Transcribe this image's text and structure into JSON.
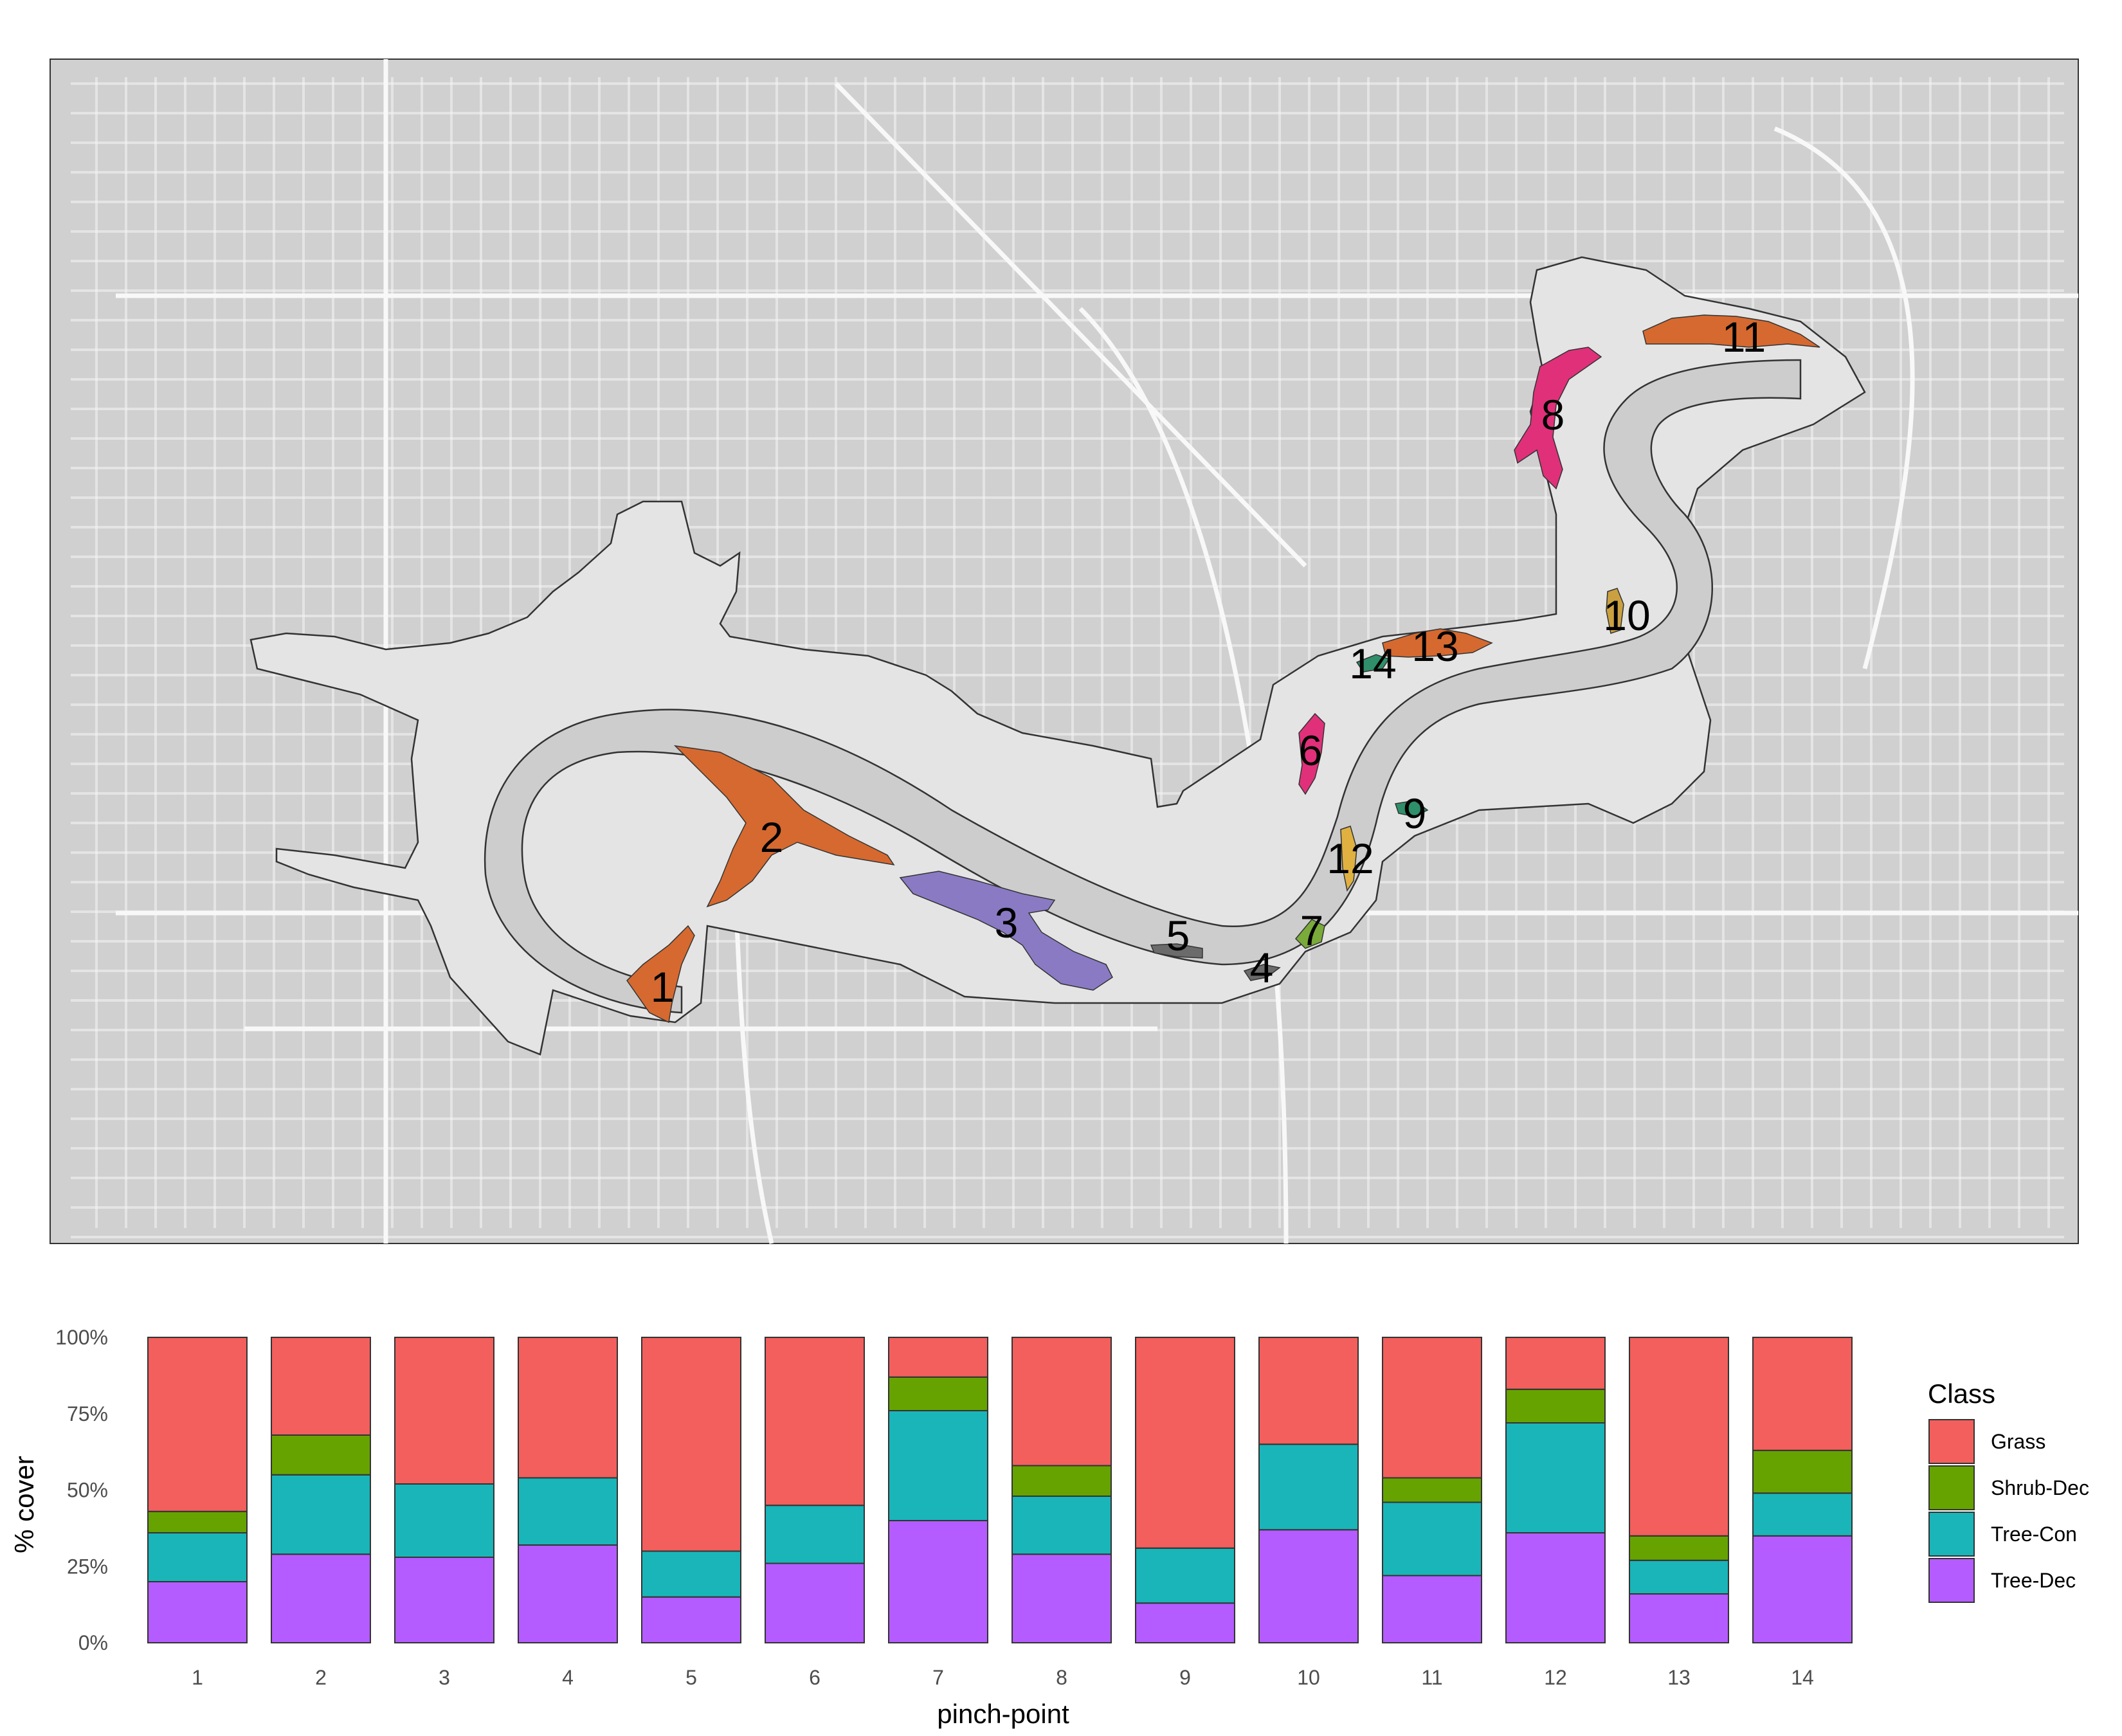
{
  "colors": {
    "Grass": "#f25f5c",
    "Shrub-Dec": "#66a300",
    "Tree-Con": "#19b5b9",
    "Tree-Dec": "#b45cff",
    "map_background": "#d0d0d0",
    "river_valley": "#e4e4e4",
    "river": "#cdcdcd",
    "roads": "#f4f4f4"
  },
  "map": {
    "pinch_points": [
      {
        "label": "1",
        "color": "#d6692f"
      },
      {
        "label": "2",
        "color": "#d6692f"
      },
      {
        "label": "3",
        "color": "#8a7ac4"
      },
      {
        "label": "4",
        "color": "#6b6b6b"
      },
      {
        "label": "5",
        "color": "#6b6b6b"
      },
      {
        "label": "6",
        "color": "#e0307a"
      },
      {
        "label": "7",
        "color": "#7aaa3a"
      },
      {
        "label": "8",
        "color": "#e0307a"
      },
      {
        "label": "9",
        "color": "#2e8f6a"
      },
      {
        "label": "10",
        "color": "#caa040"
      },
      {
        "label": "11",
        "color": "#d6692f"
      },
      {
        "label": "12",
        "color": "#e0b040"
      },
      {
        "label": "13",
        "color": "#d6692f"
      },
      {
        "label": "14",
        "color": "#2e8f6a"
      }
    ]
  },
  "chart_data": {
    "type": "bar",
    "stacked": true,
    "xlabel": "pinch-point",
    "ylabel": "% cover",
    "ylim": [
      0,
      100
    ],
    "y_ticks": [
      "0%",
      "25%",
      "50%",
      "75%",
      "100%"
    ],
    "categories": [
      "1",
      "2",
      "3",
      "4",
      "5",
      "6",
      "7",
      "8",
      "9",
      "10",
      "11",
      "12",
      "13",
      "14"
    ],
    "legend": {
      "title": "Class",
      "position": "right"
    },
    "series": [
      {
        "name": "Tree-Dec",
        "values": [
          20,
          29,
          28,
          32,
          15,
          26,
          40,
          29,
          13,
          37,
          22,
          36,
          16,
          35
        ]
      },
      {
        "name": "Tree-Con",
        "values": [
          16,
          26,
          24,
          22,
          15,
          19,
          36,
          19,
          18,
          28,
          24,
          36,
          11,
          14
        ]
      },
      {
        "name": "Shrub-Dec",
        "values": [
          7,
          13,
          0,
          0,
          0,
          0,
          11,
          10,
          0,
          0,
          8,
          11,
          8,
          14
        ]
      },
      {
        "name": "Grass",
        "values": [
          57,
          32,
          48,
          46,
          70,
          55,
          13,
          42,
          69,
          35,
          46,
          17,
          65,
          37
        ]
      }
    ],
    "legend_order": [
      "Grass",
      "Shrub-Dec",
      "Tree-Con",
      "Tree-Dec"
    ]
  }
}
